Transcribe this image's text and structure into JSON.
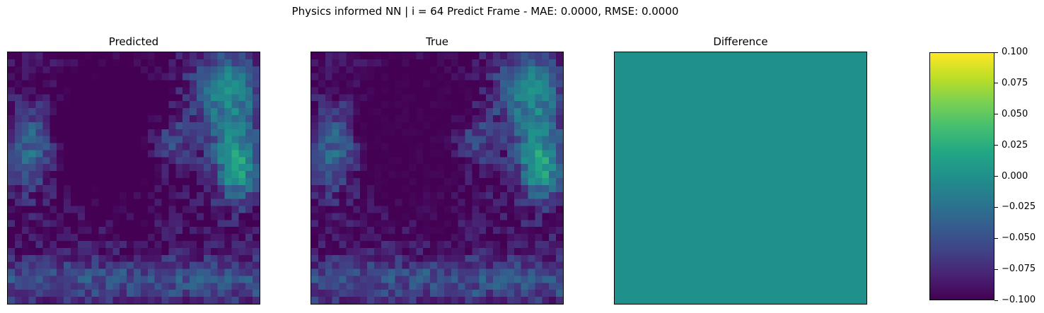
{
  "figure": {
    "suptitle": "Physics informed NN | i = 64 Predict Frame - MAE: 0.0000, RMSE: 0.0000"
  },
  "chart_data": [
    {
      "type": "heatmap",
      "title": "Predicted",
      "colormap": "viridis",
      "grid_size": [
        36,
        36
      ],
      "axes_ticks": "none",
      "description_value_range": [
        0.0,
        1.0
      ]
    },
    {
      "type": "heatmap",
      "title": "True",
      "colormap": "viridis",
      "grid_size": [
        36,
        36
      ],
      "axes_ticks": "none"
    },
    {
      "type": "heatmap",
      "title": "Difference",
      "colormap": "viridis",
      "grid_size": [
        36,
        36
      ],
      "axes_ticks": "none",
      "uniform_value": 0.0,
      "colorbar": {
        "vmin": -0.1,
        "vmax": 0.1,
        "ticks": [
          "0.100",
          "0.075",
          "0.050",
          "0.025",
          "0.000",
          "−0.025",
          "−0.050",
          "−0.075",
          "−0.100"
        ],
        "tick_values": [
          0.1,
          0.075,
          0.05,
          0.025,
          0.0,
          -0.025,
          -0.05,
          -0.075,
          -0.1
        ]
      }
    }
  ],
  "colors": {
    "viridis_low": "#440154",
    "viridis_mid": "#21918c",
    "viridis_high": "#fde725"
  }
}
